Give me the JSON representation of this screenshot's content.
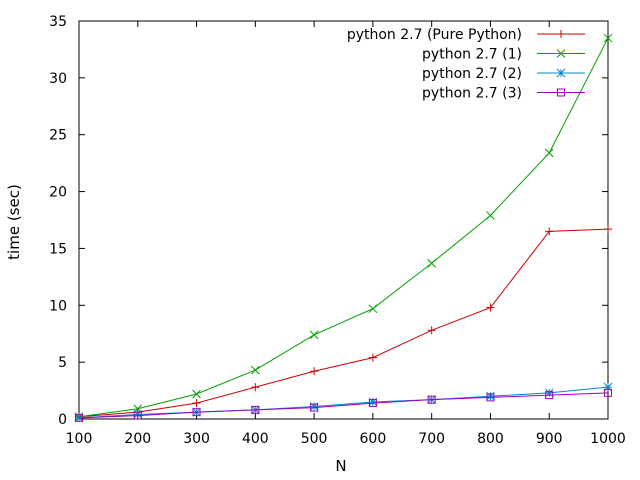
{
  "chart_data": {
    "type": "line",
    "title": "",
    "xlabel": "N",
    "ylabel": "time (sec)",
    "xlim": [
      100,
      1000
    ],
    "ylim": [
      0,
      35
    ],
    "xticks": [
      "100",
      "200",
      "300",
      "400",
      "500",
      "600",
      "700",
      "800",
      "900",
      "1000"
    ],
    "yticks": [
      "0",
      "5",
      "10",
      "15",
      "20",
      "25",
      "30",
      "35"
    ],
    "grid": false,
    "legend_position": "top-right",
    "x": [
      100,
      200,
      300,
      400,
      500,
      600,
      700,
      800,
      900,
      1000
    ],
    "series": [
      {
        "name": "python 2.7 (Pure Python)",
        "color": "#cc0000",
        "marker": "plus",
        "values": [
          0.2,
          0.6,
          1.4,
          2.8,
          4.2,
          5.4,
          7.8,
          9.8,
          16.5,
          16.7
        ]
      },
      {
        "name": "python 2.7 (1)",
        "color": "#00a000",
        "marker": "cross",
        "values": [
          0.2,
          0.9,
          2.2,
          4.3,
          7.4,
          9.7,
          13.7,
          17.9,
          23.4,
          33.5
        ]
      },
      {
        "name": "python 2.7 (2)",
        "color": "#0088cc",
        "marker": "star",
        "values": [
          0.1,
          0.4,
          0.6,
          0.8,
          1.1,
          1.5,
          1.7,
          2.0,
          2.3,
          2.8
        ]
      },
      {
        "name": "python 2.7 (3)",
        "color": "#a000c0",
        "marker": "square",
        "values": [
          0.1,
          0.3,
          0.6,
          0.8,
          1.0,
          1.4,
          1.7,
          1.9,
          2.1,
          2.3
        ]
      }
    ]
  }
}
